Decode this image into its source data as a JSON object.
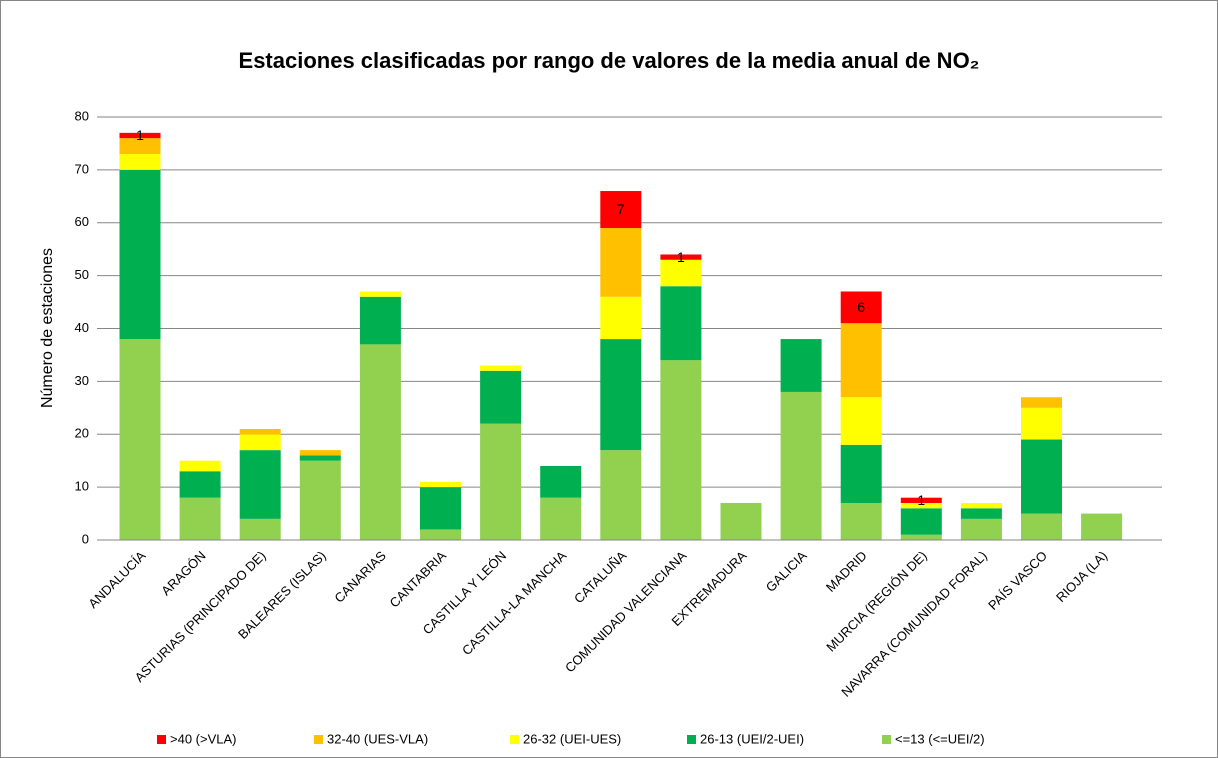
{
  "chart_data": {
    "type": "stacked_bar",
    "title": "Estaciones clasificadas por rango de valores de la media anual de NO₂",
    "y_label": "Número de estaciones",
    "categories": [
      "ANDALUCÍA",
      "ARAGÓN",
      "ASTURIAS (PRINCIPADO DE)",
      "BALEARES (ISLAS)",
      "CANARIAS",
      "CANTABRIA",
      "CASTILLA Y LEÓN",
      "CASTILLA-LA MANCHA",
      "CATALUÑA",
      "COMUNIDAD VALENCIANA",
      "EXTREMADURA",
      "GALICIA",
      "MADRID",
      "MURCIA (REGIÓN DE)",
      "NAVARRA (COMUNIDAD FORAL)",
      "PAÍS VASCO",
      "RIOJA (LA)"
    ],
    "series": [
      {
        "name": "<=13 (<=UEI/2)",
        "color": "#92d050",
        "values": [
          38,
          8,
          4,
          15,
          37,
          2,
          22,
          8,
          17,
          34,
          7,
          28,
          7,
          1,
          4,
          5,
          5
        ]
      },
      {
        "name": "26-13 (UEI/2-UEI)",
        "color": "#00b050",
        "values": [
          32,
          5,
          13,
          1,
          9,
          8,
          10,
          6,
          21,
          14,
          0,
          10,
          11,
          5,
          2,
          14,
          0
        ]
      },
      {
        "name": "26-32 (UEI-UES)",
        "color": "#ffff00",
        "values": [
          3,
          2,
          3,
          0,
          1,
          1,
          1,
          0,
          8,
          5,
          0,
          0,
          9,
          1,
          1,
          6,
          0
        ]
      },
      {
        "name": "32-40 (UES-VLA)",
        "color": "#ffc000",
        "values": [
          3,
          0,
          1,
          1,
          0,
          0,
          0,
          0,
          13,
          0,
          0,
          0,
          14,
          0,
          0,
          2,
          0
        ]
      },
      {
        "name": ">40 (>VLA)",
        "color": "#ff0000",
        "values": [
          1,
          0,
          0,
          0,
          0,
          0,
          0,
          0,
          7,
          1,
          0,
          0,
          6,
          1,
          0,
          0,
          0
        ],
        "data_labels": true
      }
    ],
    "ylim": [
      0,
      80
    ],
    "yticks": [
      0,
      10,
      20,
      30,
      40,
      50,
      60,
      70,
      80
    ],
    "grid": true,
    "legend": "bottom"
  }
}
